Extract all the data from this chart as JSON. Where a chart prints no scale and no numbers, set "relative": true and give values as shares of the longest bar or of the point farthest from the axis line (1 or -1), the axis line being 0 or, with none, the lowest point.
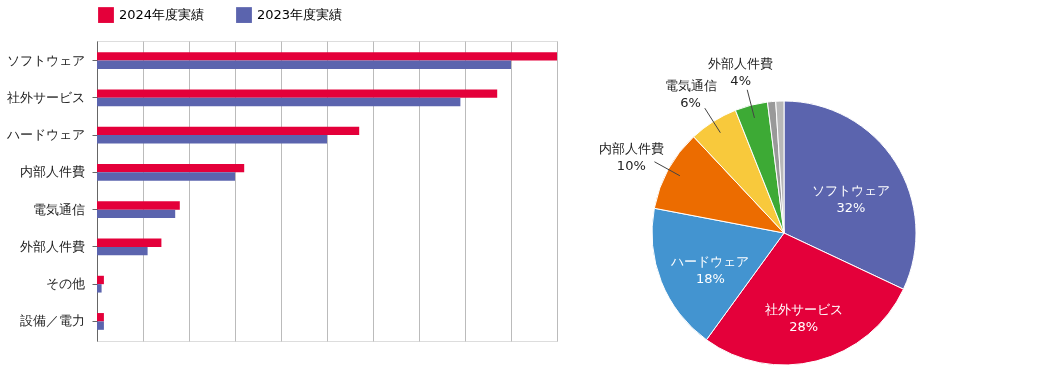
{
  "chart_data": [
    {
      "type": "bar",
      "orientation": "horizontal",
      "relative": true,
      "grid": "x",
      "legend": "top left",
      "categories": [
        "ソフトウェア",
        "社外サービス",
        "ハードウェア",
        "内部人件費",
        "電気通信",
        "外部人件費",
        "その他",
        "設備／電力"
      ],
      "series": [
        {
          "name": "2024年度実績",
          "color": "#e4003a",
          "values": [
            1,
            0.87,
            0.57,
            0.32,
            0.18,
            0.14,
            0.015,
            0.015
          ]
        },
        {
          "name": "2023年度実績",
          "color": "#5b64ae",
          "values": [
            0.9,
            0.79,
            0.5,
            0.3,
            0.17,
            0.11,
            0.01,
            0.015
          ]
        }
      ]
    },
    {
      "type": "pie",
      "legend": false,
      "categories": [
        "ソフトウェア",
        "社外サービス",
        "ハードウェア",
        "内部人件費",
        "電気通信",
        "外部人件費",
        null,
        null
      ],
      "values": [
        32,
        28,
        18,
        10,
        6,
        4,
        1,
        1
      ],
      "colors": [
        "#5b64ae",
        "#e4003a",
        "#4394d0",
        "#ec6c00",
        "#f8c93c",
        "#3daa35",
        "#999999",
        "#b8b8b8"
      ],
      "value_labels": [
        "32%",
        "28%",
        "18%",
        "10%",
        "6%",
        "4%",
        null,
        null
      ]
    }
  ]
}
